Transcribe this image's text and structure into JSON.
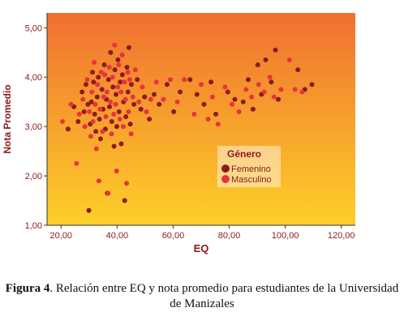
{
  "chart_data": {
    "type": "scatter",
    "xlabel": "EQ",
    "ylabel": "Nota Promedio",
    "xlim": [
      15,
      125
    ],
    "ylim": [
      1.0,
      5.3
    ],
    "x_ticks": [
      "20,00",
      "40,00",
      "60,00",
      "80,00",
      "100,00",
      "120,00"
    ],
    "y_ticks": [
      "1,00",
      "2,00",
      "3,00",
      "4,00",
      "5,00"
    ],
    "legend": {
      "title": "Género",
      "position": "center-right",
      "entries": [
        "Femenino",
        "Masculino"
      ]
    },
    "colors": {
      "Femenino": "#8b1a1a",
      "Masculino": "#e8333e",
      "background_top": "#f07030",
      "background_bottom": "#fdd02a",
      "axis_text": "#8b1a1a"
    },
    "series": [
      {
        "name": "Femenino",
        "points": [
          [
            22.5,
            2.95
          ],
          [
            24.6,
            3.4
          ],
          [
            26.1,
            3.1
          ],
          [
            27.5,
            3.7
          ],
          [
            28.2,
            3.3
          ],
          [
            28.9,
            3.85
          ],
          [
            29.6,
            3.45
          ],
          [
            29.9,
            1.3
          ],
          [
            30.4,
            3.05
          ],
          [
            30.8,
            3.5
          ],
          [
            31.2,
            4.1
          ],
          [
            31.6,
            3.9
          ],
          [
            32.0,
            3.25
          ],
          [
            32.4,
            2.9
          ],
          [
            32.9,
            3.6
          ],
          [
            33.3,
            4.0
          ],
          [
            33.7,
            3.15
          ],
          [
            34.1,
            2.75
          ],
          [
            34.6,
            3.75
          ],
          [
            35.0,
            3.35
          ],
          [
            35.4,
            4.25
          ],
          [
            35.8,
            2.95
          ],
          [
            36.2,
            3.55
          ],
          [
            36.5,
            1.65
          ],
          [
            36.9,
            3.95
          ],
          [
            37.3,
            3.4
          ],
          [
            37.7,
            4.5
          ],
          [
            38.1,
            3.1
          ],
          [
            38.5,
            3.8
          ],
          [
            38.9,
            2.6
          ],
          [
            39.2,
            4.15
          ],
          [
            39.6,
            3.65
          ],
          [
            39.9,
            3.0
          ],
          [
            40.3,
            4.35
          ],
          [
            40.7,
            3.3
          ],
          [
            41.1,
            3.9
          ],
          [
            41.5,
            2.65
          ],
          [
            41.9,
            4.05
          ],
          [
            42.3,
            3.5
          ],
          [
            42.7,
            1.5
          ],
          [
            43.1,
            3.2
          ],
          [
            43.5,
            4.2
          ],
          [
            43.9,
            3.7
          ],
          [
            44.2,
            4.6
          ],
          [
            44.7,
            3.05
          ],
          [
            45.1,
            3.85
          ],
          [
            46.0,
            3.45
          ],
          [
            47.2,
            3.95
          ],
          [
            48.5,
            3.35
          ],
          [
            49.8,
            3.6
          ],
          [
            51.5,
            3.15
          ],
          [
            53.2,
            3.65
          ],
          [
            55.0,
            3.45
          ],
          [
            57.8,
            3.85
          ],
          [
            60.2,
            3.3
          ],
          [
            62.5,
            3.7
          ],
          [
            66.0,
            3.95
          ],
          [
            68.5,
            3.65
          ],
          [
            71.0,
            3.45
          ],
          [
            73.5,
            3.9
          ],
          [
            75.2,
            3.25
          ],
          [
            79.5,
            3.7
          ],
          [
            82.0,
            3.55
          ],
          [
            85.0,
            3.5
          ],
          [
            86.8,
            3.95
          ],
          [
            88.5,
            3.35
          ],
          [
            90.2,
            4.25
          ],
          [
            91.5,
            3.65
          ],
          [
            93.0,
            4.35
          ],
          [
            95.0,
            3.9
          ],
          [
            96.5,
            4.55
          ],
          [
            97.5,
            3.55
          ],
          [
            104.5,
            4.15
          ],
          [
            107.0,
            3.75
          ],
          [
            109.5,
            3.85
          ]
        ]
      },
      {
        "name": "Masculino",
        "points": [
          [
            20.5,
            3.1
          ],
          [
            23.5,
            3.45
          ],
          [
            25.5,
            2.25
          ],
          [
            26.5,
            3.25
          ],
          [
            27.8,
            3.55
          ],
          [
            28.5,
            3.0
          ],
          [
            29.3,
            3.95
          ],
          [
            30.1,
            3.3
          ],
          [
            30.6,
            2.8
          ],
          [
            31.0,
            3.7
          ],
          [
            31.4,
            3.1
          ],
          [
            31.8,
            4.3
          ],
          [
            32.2,
            3.45
          ],
          [
            32.6,
            2.55
          ],
          [
            33.0,
            3.85
          ],
          [
            33.5,
            1.9
          ],
          [
            33.9,
            3.35
          ],
          [
            34.3,
            4.1
          ],
          [
            34.8,
            2.9
          ],
          [
            35.2,
            3.6
          ],
          [
            35.6,
            4.05
          ],
          [
            36.0,
            3.2
          ],
          [
            36.4,
            3.7
          ],
          [
            36.8,
            1.65
          ],
          [
            37.2,
            4.2
          ],
          [
            37.6,
            3.5
          ],
          [
            38.0,
            2.85
          ],
          [
            38.4,
            4.0
          ],
          [
            38.8,
            3.25
          ],
          [
            39.1,
            4.65
          ],
          [
            39.5,
            3.45
          ],
          [
            39.8,
            2.1
          ],
          [
            40.2,
            3.8
          ],
          [
            40.6,
            4.25
          ],
          [
            41.0,
            3.15
          ],
          [
            41.4,
            3.7
          ],
          [
            41.8,
            4.45
          ],
          [
            42.2,
            3.0
          ],
          [
            42.6,
            3.9
          ],
          [
            43.0,
            3.55
          ],
          [
            43.4,
            1.85
          ],
          [
            43.8,
            4.1
          ],
          [
            44.1,
            3.3
          ],
          [
            44.5,
            3.95
          ],
          [
            45.0,
            2.85
          ],
          [
            45.6,
            3.6
          ],
          [
            46.5,
            4.15
          ],
          [
            47.8,
            3.5
          ],
          [
            49.0,
            3.8
          ],
          [
            50.5,
            3.3
          ],
          [
            52.0,
            3.55
          ],
          [
            54.0,
            3.9
          ],
          [
            56.5,
            3.55
          ],
          [
            59.0,
            3.95
          ],
          [
            61.5,
            3.5
          ],
          [
            64.0,
            3.95
          ],
          [
            67.5,
            3.25
          ],
          [
            70.0,
            3.85
          ],
          [
            72.5,
            3.15
          ],
          [
            74.0,
            3.6
          ],
          [
            76.0,
            3.05
          ],
          [
            78.5,
            3.8
          ],
          [
            81.0,
            3.45
          ],
          [
            83.5,
            3.3
          ],
          [
            86.0,
            3.75
          ],
          [
            88.0,
            3.6
          ],
          [
            90.5,
            3.85
          ],
          [
            92.5,
            3.7
          ],
          [
            94.5,
            4.0
          ],
          [
            96.0,
            3.6
          ],
          [
            98.5,
            3.75
          ],
          [
            101.5,
            4.35
          ],
          [
            103.5,
            3.75
          ],
          [
            106.0,
            3.7
          ]
        ]
      }
    ]
  },
  "caption": {
    "label": "Figura 4",
    "text": ". Relación entre EQ y nota promedio para estudiantes de la Universidad de Manizales"
  }
}
